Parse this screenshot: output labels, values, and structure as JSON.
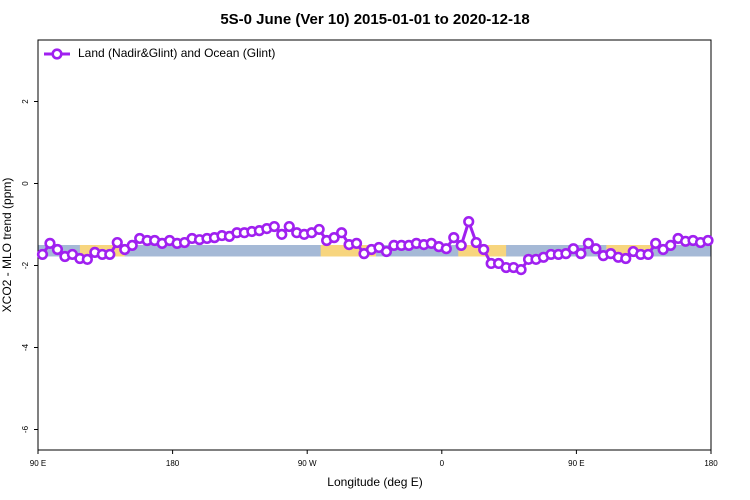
{
  "chart_data": {
    "type": "line",
    "title": "5S-0 June (Ver 10)   2015-01-01 to 2020-12-18",
    "x_label": "Longitude (deg E)",
    "y_label": "XCO2 - MLO trend (ppm)",
    "xlim": [
      90,
      540
    ],
    "ylim": [
      -6.5,
      3.5
    ],
    "xticks": [
      {
        "value": 90,
        "label": "90 E"
      },
      180,
      {
        "value": 270,
        "label": "90 W"
      },
      {
        "value": 360,
        "label": "0"
      },
      {
        "value": 450,
        "label": "90 E"
      },
      {
        "value": 540,
        "label": "180"
      }
    ],
    "yticks": [
      2,
      0,
      -2,
      -4,
      -6
    ],
    "legend": "top-left",
    "band": {
      "ylim": [
        -1.5,
        -1.78
      ],
      "color": "#a5b9d6",
      "highlight_color": "#f7d57e",
      "highlights": [
        [
          118,
          148
        ],
        [
          279,
          316
        ],
        [
          371,
          403
        ],
        [
          470,
          500
        ]
      ]
    },
    "x": [
      93,
      98,
      103,
      108,
      113,
      118,
      123,
      128,
      133,
      138,
      143,
      148,
      153,
      158,
      163,
      168,
      173,
      178,
      183,
      188,
      193,
      198,
      203,
      208,
      213,
      218,
      223,
      228,
      233,
      238,
      243,
      248,
      253,
      258,
      263,
      268,
      273,
      278,
      283,
      288,
      293,
      298,
      303,
      308,
      313,
      318,
      323,
      328,
      333,
      338,
      343,
      348,
      353,
      358,
      363,
      368,
      373,
      378,
      383,
      388,
      393,
      398,
      403,
      408,
      413,
      418,
      423,
      428,
      433,
      438,
      443,
      448,
      453,
      458,
      463,
      468,
      473,
      478,
      483,
      488,
      493,
      498,
      503,
      508,
      513,
      518,
      523,
      528,
      533,
      538
    ],
    "series": [
      {
        "name": "Land (Nadir&Glint) and Ocean (Glint)",
        "color": "#a020f0",
        "values": [
          -1.73,
          -1.46,
          -1.61,
          -1.78,
          -1.73,
          -1.83,
          -1.85,
          -1.68,
          -1.73,
          -1.73,
          -1.44,
          -1.61,
          -1.51,
          -1.34,
          -1.39,
          -1.39,
          -1.46,
          -1.39,
          -1.46,
          -1.44,
          -1.34,
          -1.37,
          -1.34,
          -1.32,
          -1.27,
          -1.29,
          -1.2,
          -1.2,
          -1.17,
          -1.15,
          -1.1,
          -1.05,
          -1.24,
          -1.05,
          -1.2,
          -1.24,
          -1.2,
          -1.12,
          -1.39,
          -1.32,
          -1.2,
          -1.49,
          -1.46,
          -1.71,
          -1.61,
          -1.56,
          -1.66,
          -1.51,
          -1.51,
          -1.51,
          -1.46,
          -1.49,
          -1.46,
          -1.54,
          -1.59,
          -1.32,
          -1.51,
          -0.93,
          -1.44,
          -1.61,
          -1.95,
          -1.95,
          -2.05,
          -2.05,
          -2.1,
          -1.85,
          -1.85,
          -1.8,
          -1.73,
          -1.73,
          -1.71,
          -1.59,
          -1.71,
          -1.46,
          -1.59,
          -1.76,
          -1.71,
          -1.8,
          -1.83,
          -1.66,
          -1.73,
          -1.73,
          -1.46,
          -1.61,
          -1.51,
          -1.34,
          -1.41,
          -1.39,
          -1.44,
          -1.39
        ]
      }
    ]
  }
}
